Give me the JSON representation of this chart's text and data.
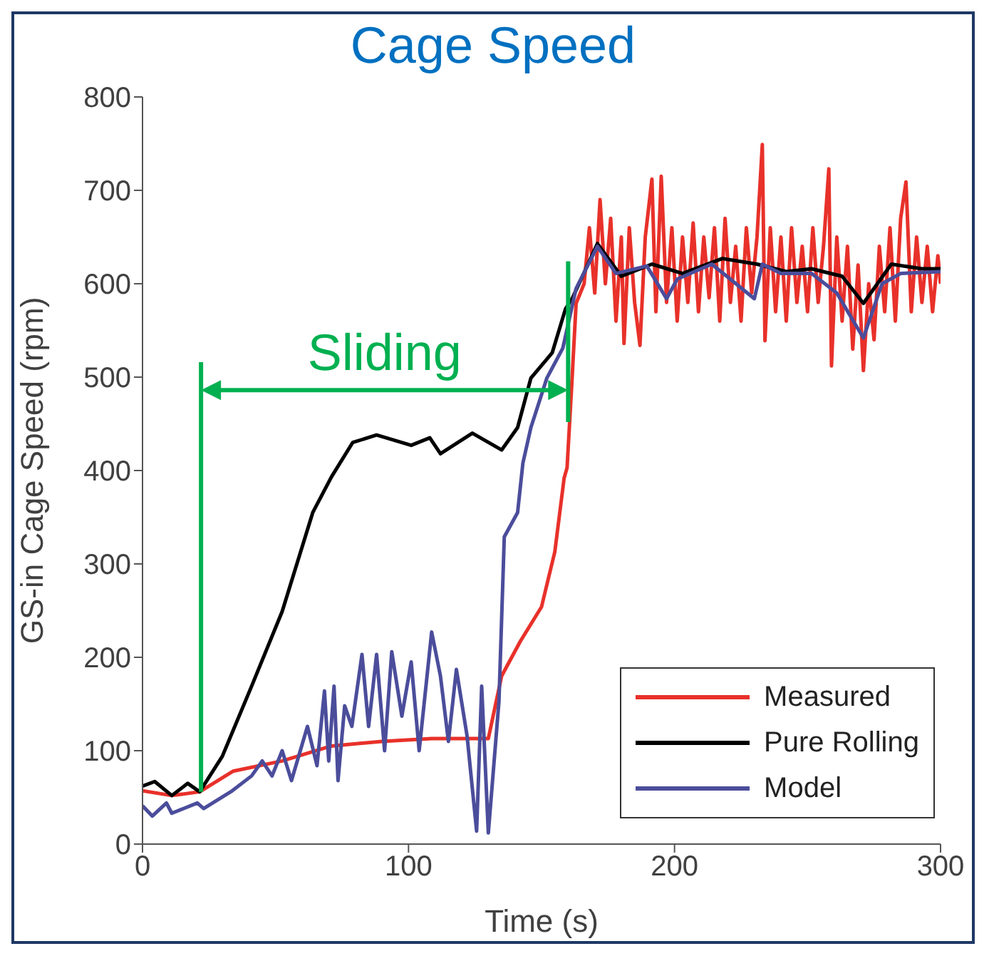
{
  "chart_data": {
    "type": "line",
    "title": "Cage Speed",
    "xlabel": "Time (s)",
    "ylabel": "GS-in Cage Speed (rpm)",
    "xlim": [
      0,
      300
    ],
    "xticks": [
      0,
      100,
      200,
      300
    ],
    "ylim": [
      0,
      800
    ],
    "yticks": [
      0,
      100,
      200,
      300,
      400,
      500,
      600,
      700,
      800
    ],
    "legend": "bottom right",
    "marker": "none",
    "line_style": "solid",
    "ref_lines": [
      {
        "axis": "x",
        "value": 22,
        "color": "#00b050"
      },
      {
        "axis": "x",
        "value": 160,
        "color": "#00b050"
      }
    ],
    "annotations": [
      "Sliding"
    ],
    "series": [
      {
        "name": "Measured",
        "color": "#e8312a",
        "x": [
          0,
          11,
          21.5,
          34,
          52.5,
          71,
          90,
          108.7,
          130,
          135,
          142,
          150,
          155,
          158.5,
          159.6,
          161.5,
          163,
          166,
          168,
          170,
          172,
          174,
          176,
          178,
          180,
          181,
          183,
          185,
          187,
          189,
          191.5,
          193,
          195,
          197,
          199,
          201,
          203,
          205,
          207,
          209,
          211,
          213,
          215,
          217,
          219,
          221,
          223,
          225,
          227,
          229,
          231,
          233,
          234,
          236,
          238,
          240,
          242,
          244,
          246,
          248,
          250,
          252,
          254,
          256,
          258,
          259,
          261,
          263,
          265,
          267,
          269,
          271,
          273,
          275,
          277,
          279,
          281,
          283,
          285,
          287,
          289,
          291,
          293,
          295,
          297,
          299,
          300
        ],
        "values": [
          57,
          52,
          56,
          78,
          89,
          105,
          110,
          113,
          113,
          180,
          217,
          254,
          313,
          392,
          403,
          499,
          579,
          600,
          660,
          590,
          690,
          600,
          670,
          560,
          650,
          536,
          660,
          580,
          534,
          650,
          712,
          570,
          715,
          580,
          660,
          560,
          650,
          580,
          665,
          570,
          650,
          585,
          660,
          560,
          670,
          580,
          640,
          560,
          660,
          590,
          650,
          749,
          539,
          660,
          570,
          650,
          560,
          660,
          580,
          640,
          570,
          660,
          580,
          640,
          723,
          512,
          650,
          560,
          640,
          530,
          620,
          507,
          600,
          540,
          640,
          570,
          660,
          560,
          670,
          709,
          570,
          650,
          580,
          640,
          570,
          630,
          600
        ]
      },
      {
        "name": "Pure Rolling",
        "color": "#000000",
        "x": [
          0,
          4.6,
          11,
          17,
          21.5,
          30,
          41,
          52.5,
          64,
          71,
          79,
          88,
          101,
          108,
          112,
          124,
          135,
          141,
          146,
          154,
          159,
          161.5,
          171,
          180,
          191.5,
          203,
          218,
          231,
          242,
          251.5,
          263,
          271,
          281.5,
          293,
          300
        ],
        "values": [
          62,
          67,
          52,
          65,
          56,
          94,
          169,
          249,
          355,
          393,
          430,
          438,
          427,
          435,
          418,
          440,
          422,
          446,
          499,
          526,
          573,
          584,
          643,
          608,
          621,
          611,
          627,
          621,
          613,
          616,
          608,
          579,
          621,
          616,
          616
        ]
      },
      {
        "name": "Model",
        "color": "#4b4d9b",
        "x": [
          0,
          3.7,
          9,
          11,
          20.6,
          23,
          33.7,
          41,
          45,
          48.7,
          52.5,
          56,
          62,
          65.6,
          68.4,
          70,
          72,
          73.5,
          76,
          78.7,
          82.5,
          85,
          88,
          91,
          93.7,
          97.5,
          101,
          104,
          108.7,
          112,
          115,
          118,
          122,
          125.6,
          127.5,
          130,
          134,
          136,
          141,
          143,
          146,
          152,
          158,
          163,
          171,
          178,
          189.6,
          197,
          201,
          214,
          230,
          233,
          240,
          251.5,
          261,
          266.6,
          271,
          278,
          285,
          300
        ],
        "values": [
          41,
          30,
          44,
          33,
          44,
          38,
          57,
          73,
          89,
          73,
          100,
          68,
          126,
          84,
          164,
          89,
          169,
          68,
          148,
          126,
          203,
          126,
          203,
          100,
          206,
          137,
          195,
          100,
          227,
          180,
          110,
          187,
          116,
          14,
          169,
          12,
          153,
          329,
          355,
          408,
          446,
          499,
          531,
          595,
          640,
          611,
          619,
          584,
          605,
          621,
          584,
          621,
          611,
          611,
          590,
          563,
          542,
          600,
          611,
          613
        ]
      }
    ]
  }
}
